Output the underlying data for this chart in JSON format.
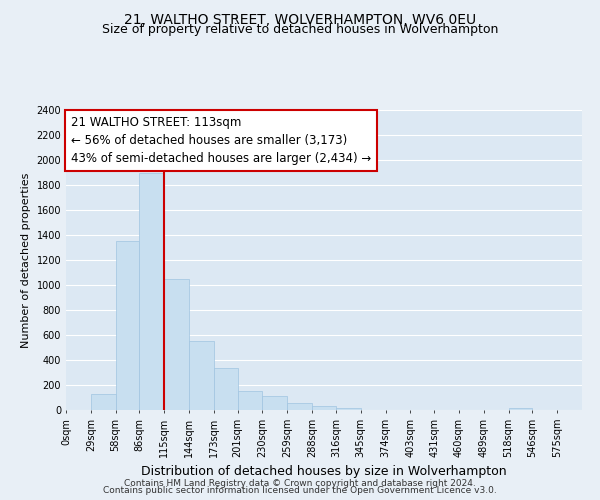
{
  "title": "21, WALTHO STREET, WOLVERHAMPTON, WV6 0EU",
  "subtitle": "Size of property relative to detached houses in Wolverhampton",
  "xlabel": "Distribution of detached houses by size in Wolverhampton",
  "ylabel": "Number of detached properties",
  "bar_edges": [
    0,
    29,
    58,
    86,
    115,
    144,
    173,
    201,
    230,
    259,
    288,
    316,
    345,
    374,
    403,
    431,
    460,
    489,
    518,
    546,
    575
  ],
  "bar_heights": [
    0,
    125,
    1350,
    1900,
    1050,
    550,
    335,
    155,
    110,
    60,
    30,
    20,
    0,
    0,
    0,
    0,
    0,
    0,
    15,
    0,
    0
  ],
  "bar_color": "#c8dff0",
  "bar_edgecolor": "#a0c4e0",
  "vline_x": 115,
  "vline_color": "#cc0000",
  "annotation_title": "21 WALTHO STREET: 113sqm",
  "annotation_line1": "← 56% of detached houses are smaller (3,173)",
  "annotation_line2": "43% of semi-detached houses are larger (2,434) →",
  "box_facecolor": "#ffffff",
  "box_edgecolor": "#cc0000",
  "ylim": [
    0,
    2400
  ],
  "xlim_max": 604,
  "xtick_labels": [
    "0sqm",
    "29sqm",
    "58sqm",
    "86sqm",
    "115sqm",
    "144sqm",
    "173sqm",
    "201sqm",
    "230sqm",
    "259sqm",
    "288sqm",
    "316sqm",
    "345sqm",
    "374sqm",
    "403sqm",
    "431sqm",
    "460sqm",
    "489sqm",
    "518sqm",
    "546sqm",
    "575sqm"
  ],
  "ytick_values": [
    0,
    200,
    400,
    600,
    800,
    1000,
    1200,
    1400,
    1600,
    1800,
    2000,
    2200,
    2400
  ],
  "footer1": "Contains HM Land Registry data © Crown copyright and database right 2024.",
  "footer2": "Contains public sector information licensed under the Open Government Licence v3.0.",
  "background_color": "#e8eff6",
  "plot_bg_color": "#dce8f3",
  "grid_color": "#ffffff",
  "title_fontsize": 10,
  "subtitle_fontsize": 9,
  "xlabel_fontsize": 9,
  "ylabel_fontsize": 8,
  "tick_fontsize": 7,
  "annotation_fontsize": 8.5,
  "footer_fontsize": 6.5
}
